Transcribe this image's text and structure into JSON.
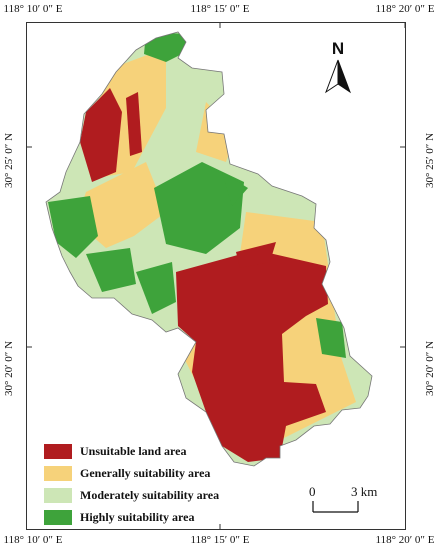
{
  "coordinates": {
    "top": [
      "118° 10′ 0″ E",
      "118° 15′ 0″ E",
      "118° 20′ 0″ E"
    ],
    "bottom": [
      "118° 10′ 0″ E",
      "118° 15′ 0″ E",
      "118° 20′ 0″ E"
    ],
    "left": [
      "30° 25′ 0″ N",
      "30° 20′ 0″ N"
    ],
    "right": [
      "30° 25′ 0″ N",
      "30° 20′ 0″ N"
    ]
  },
  "north_arrow": {
    "label": "N"
  },
  "legend": {
    "items": [
      {
        "label": "Unsuitable land area",
        "color": "#b01c1f"
      },
      {
        "label": "Generally suitability area",
        "color": "#f6d27a"
      },
      {
        "label": "Moderately suitability area",
        "color": "#cde6b6"
      },
      {
        "label": "Highly suitability area",
        "color": "#3ea33b"
      }
    ]
  },
  "scale_bar": {
    "start": "0",
    "end": "3 km"
  }
}
